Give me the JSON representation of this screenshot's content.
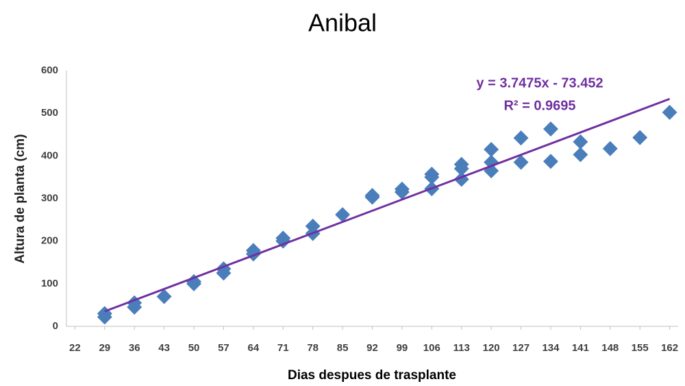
{
  "chart_data": {
    "type": "scatter",
    "title": "Anibal",
    "x_label": "Dias despues de trasplante",
    "y_label": "Altura de planta (cm)",
    "xlim": [
      20,
      164
    ],
    "xticks": [
      22,
      29,
      36,
      43,
      50,
      57,
      64,
      71,
      78,
      85,
      92,
      99,
      106,
      113,
      120,
      127,
      134,
      141,
      148,
      155,
      162
    ],
    "ylim": [
      0,
      600
    ],
    "yticks": [
      0,
      100,
      200,
      300,
      400,
      500,
      600
    ],
    "grid": false,
    "series": [
      {
        "color": "#4a7ebb",
        "x": [
          29,
          29,
          36,
          36,
          43,
          50,
          50,
          57,
          57,
          64,
          64,
          71,
          71,
          78,
          78,
          85,
          92,
          92,
          99,
          99,
          106,
          106,
          106,
          113,
          113,
          113,
          120,
          120,
          120,
          127,
          127,
          134,
          134,
          141,
          141,
          148,
          155,
          162
        ],
        "values": [
          22,
          30,
          45,
          55,
          70,
          100,
          105,
          125,
          135,
          170,
          178,
          200,
          207,
          218,
          235,
          262,
          303,
          307,
          315,
          322,
          323,
          350,
          357,
          345,
          370,
          380,
          365,
          385,
          415,
          385,
          442,
          387,
          463,
          403,
          433,
          417,
          443,
          502
        ]
      }
    ],
    "trendline": {
      "slope": 3.7475,
      "intercept": -73.452,
      "color": "#7030a0",
      "equation": "y = 3.7475x - 73.452",
      "r2": "R² = 0.9695"
    }
  }
}
